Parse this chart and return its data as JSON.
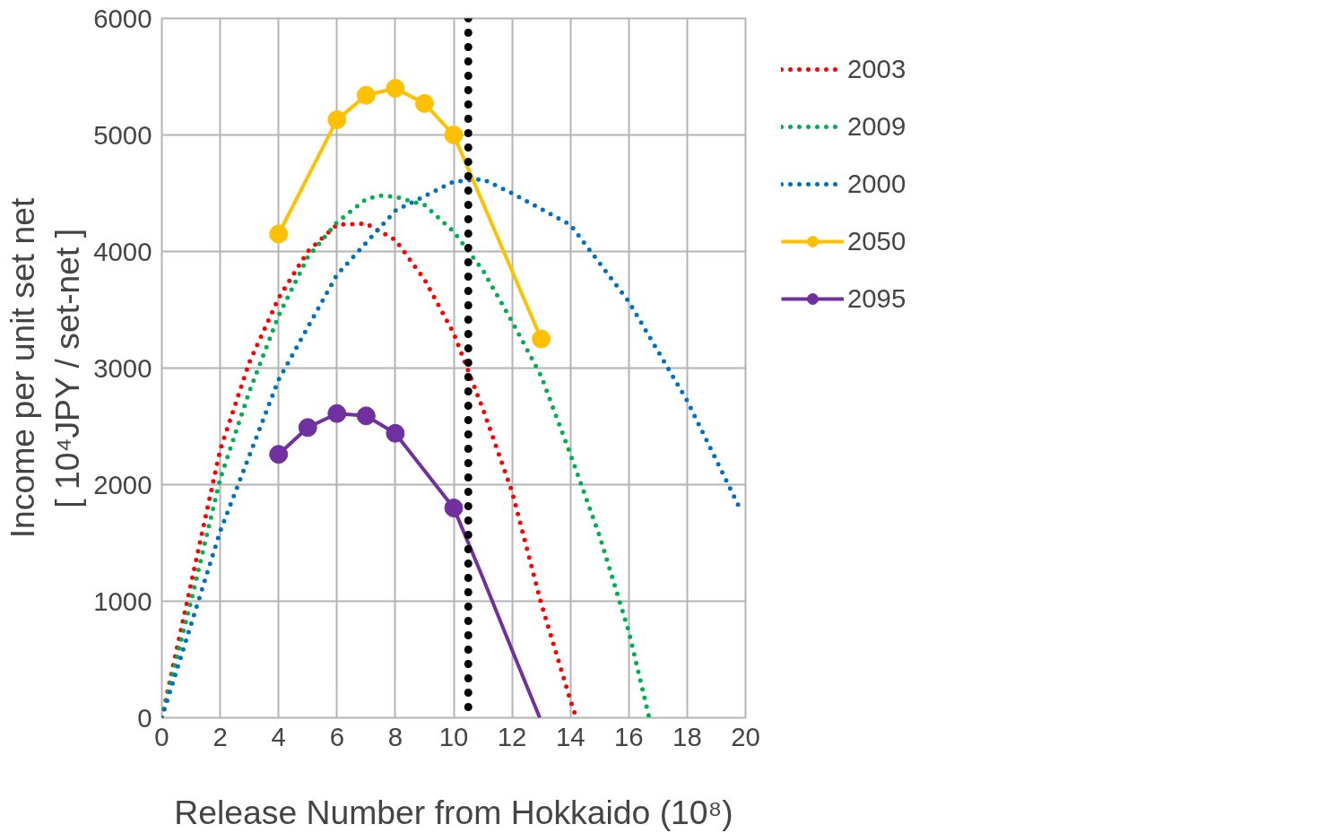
{
  "chart_data": {
    "type": "line",
    "xlabel": "Release Number from Hokkaido (10⁸)",
    "ylabel": "Income per unit set net\n[ 10⁴JPY / set-net ]",
    "xlim": [
      0,
      20
    ],
    "ylim": [
      0,
      6000
    ],
    "xticks": [
      0,
      2,
      4,
      6,
      8,
      10,
      12,
      14,
      16,
      18,
      20
    ],
    "yticks": [
      0,
      1000,
      2000,
      3000,
      4000,
      5000,
      6000
    ],
    "grid": true,
    "legend": "right",
    "series": [
      {
        "name": "2003",
        "color": "#ff0000",
        "line_style": "dotted",
        "marker": "none",
        "x": [
          0,
          1,
          2,
          3,
          4,
          5,
          6,
          7,
          8,
          9,
          10,
          11,
          12,
          13,
          14,
          14.2
        ],
        "values": [
          0,
          1150,
          2300,
          3050,
          3600,
          4000,
          4230,
          4240,
          4100,
          3760,
          3300,
          2650,
          1940,
          980,
          150,
          0
        ]
      },
      {
        "name": "2009",
        "color": "#00b050",
        "line_style": "dotted",
        "marker": "none",
        "x": [
          0,
          1,
          2,
          3,
          4,
          5,
          6,
          7,
          7.5,
          8,
          9,
          10,
          11,
          12,
          13,
          14,
          15,
          16,
          16.7
        ],
        "values": [
          0,
          1000,
          2050,
          2800,
          3450,
          3950,
          4250,
          4450,
          4480,
          4470,
          4400,
          4170,
          3840,
          3400,
          2930,
          2260,
          1560,
          740,
          0
        ]
      },
      {
        "name": "2000",
        "color": "#0070c0",
        "line_style": "dotted",
        "marker": "none",
        "x": [
          0,
          2,
          4,
          6,
          8,
          10,
          11,
          12,
          14,
          16,
          18,
          19.8
        ],
        "values": [
          0,
          1600,
          2900,
          3800,
          4350,
          4600,
          4620,
          4500,
          4230,
          3570,
          2720,
          1800
        ]
      },
      {
        "name": "2050",
        "color": "#ffc000",
        "line_style": "solid",
        "marker": "circle",
        "x": [
          4,
          6,
          7,
          8,
          9,
          10,
          13
        ],
        "values": [
          4150,
          5130,
          5340,
          5400,
          5270,
          5000,
          3250
        ]
      },
      {
        "name": "2095",
        "color": "#7030a0",
        "line_style": "solid",
        "marker": "circle",
        "x": [
          4,
          5,
          6,
          7,
          8,
          10
        ],
        "values": [
          2260,
          2490,
          2610,
          2590,
          2440,
          1800
        ]
      },
      {
        "color": "#7030a0",
        "line_style": "solid",
        "marker": "none",
        "x": [
          10,
          11,
          12,
          12.95
        ],
        "values": [
          1800,
          1200,
          580,
          0
        ]
      }
    ],
    "ref_lines": [
      {
        "axis": "x",
        "value": 10.5,
        "color": "#000000",
        "line_style": "dotted"
      }
    ]
  }
}
